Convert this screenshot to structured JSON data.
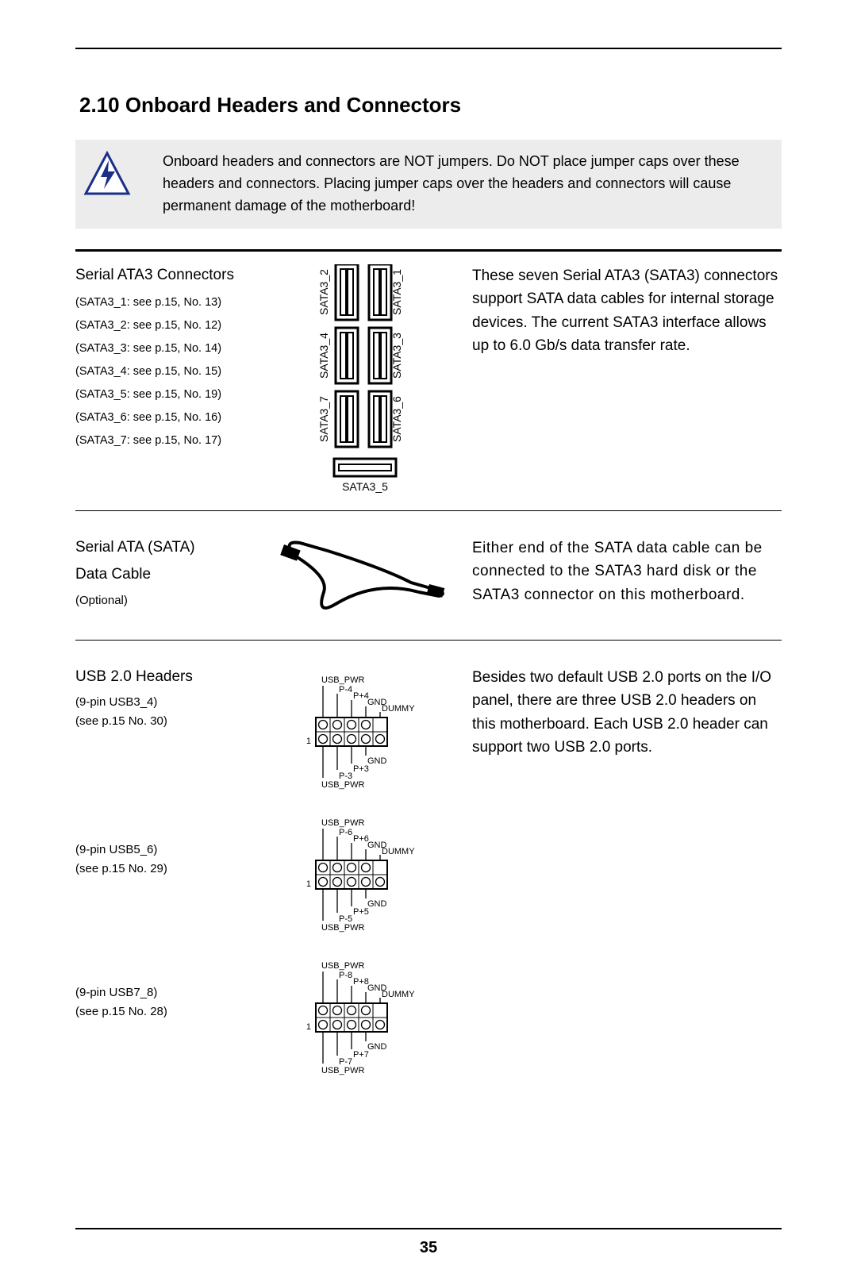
{
  "page_number": "35",
  "heading": "2.10  Onboard Headers and Connectors",
  "warning": "Onboard headers and connectors are NOT jumpers. Do NOT place jumper caps over these headers and connectors. Placing jumper caps over the headers and connectors will cause permanent damage of the motherboard!",
  "sata": {
    "title": "Serial ATA3 Connectors",
    "refs": [
      "(SATA3_1: see  p.15, No. 13)",
      "(SATA3_2: see  p.15, No. 12)",
      "(SATA3_3: see  p.15, No. 14)",
      "(SATA3_4: see  p.15, No. 15)",
      "(SATA3_5: see  p.15, No. 19)",
      "(SATA3_6: see  p.15, No. 16)",
      "(SATA3_7: see  p.15, No. 17)"
    ],
    "labels": {
      "l1": "SATA3_2",
      "r1": "SATA3_1",
      "l2": "SATA3_4",
      "r2": "SATA3_3",
      "l3": "SATA3_7",
      "r3": "SATA3_6",
      "bottom": "SATA3_5"
    },
    "desc": "These seven Serial ATA3 (SATA3) connectors support SATA data cables for internal storage devices. The current SATA3 interface allows up to 6.0 Gb/s data transfer rate."
  },
  "cable": {
    "title1": "Serial ATA (SATA)",
    "title2": "Data Cable",
    "sub": "(Optional)",
    "desc": "Either end of the SATA data cable can be connected to the SATA3 hard disk or the SATA3 connector on this motherboard."
  },
  "usb": {
    "title": "USB 2.0 Headers",
    "h1_pin": "(9-pin USB3_4)",
    "h1_ref": "(see p.15  No. 30)",
    "h2_pin": "(9-pin USB5_6)",
    "h2_ref": "(see p.15  No. 29)",
    "h3_pin": "(9-pin USB7_8)",
    "h3_ref": "(see p.15  No. 28)",
    "desc": "Besides two default USB 2.0 ports on the I/O panel, there are three USB 2.0 headers on this motherboard. Each USB 2.0 header can support two USB 2.0 ports.",
    "pin_labels": {
      "usb_pwr": "USB_PWR",
      "gnd": "GND",
      "dummy": "DUMMY",
      "h1": {
        "pm": "P-4",
        "pp": "P+4",
        "pm2": "P-3",
        "pp2": "P+3"
      },
      "h2": {
        "pm": "P-6",
        "pp": "P+6",
        "pm2": "P-5",
        "pp2": "P+5"
      },
      "h3": {
        "pm": "P-8",
        "pp": "P+8",
        "pm2": "P-7",
        "pp2": "P+7"
      }
    }
  }
}
